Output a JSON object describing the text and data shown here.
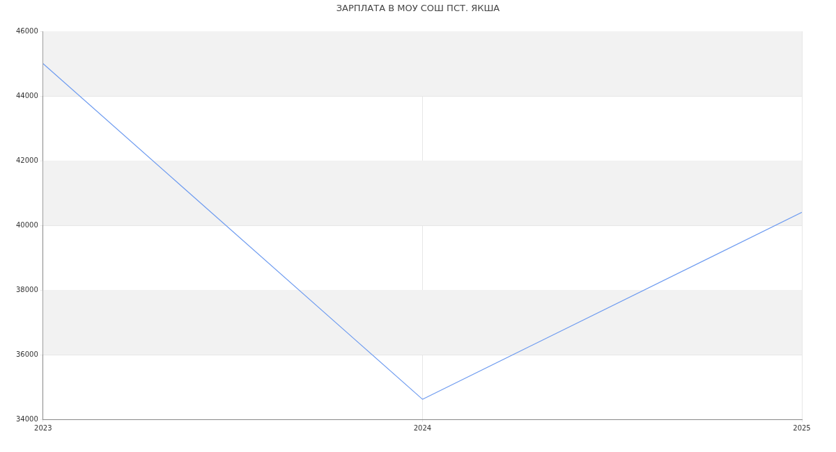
{
  "chart_data": {
    "type": "line",
    "title": "ЗАРПЛАТА В МОУ СОШ ПСТ. ЯКША",
    "x": [
      2023,
      2024,
      2025
    ],
    "series": [
      {
        "color": "#6f9cf0",
        "values": [
          45000,
          34620,
          40400
        ]
      }
    ],
    "xlim": [
      2023,
      2025
    ],
    "xticks": [
      2023,
      2024,
      2025
    ],
    "ylim": [
      34000,
      46000
    ],
    "yticks": [
      34000,
      36000,
      38000,
      40000,
      42000,
      44000,
      46000
    ],
    "bands": [
      {
        "axis": "y",
        "from": 36000,
        "to": 38000,
        "color": "#f2f2f2"
      },
      {
        "axis": "y",
        "from": 40000,
        "to": 42000,
        "color": "#f2f2f2"
      },
      {
        "axis": "y",
        "from": 44000,
        "to": 46000,
        "color": "#f2f2f2"
      }
    ],
    "grid": true,
    "legend": false,
    "marker": "none",
    "line_style": "solid"
  }
}
